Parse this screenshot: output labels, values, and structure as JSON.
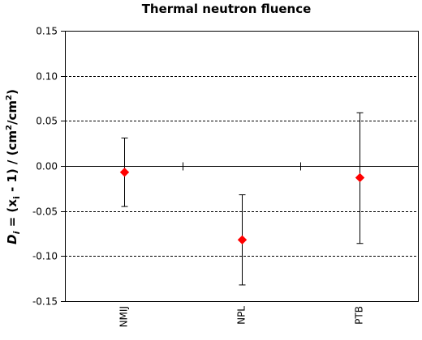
{
  "chart_data": {
    "type": "scatter",
    "title": "Thermal neutron fluence",
    "ylabel": {
      "d": "D",
      "d_sub": "i",
      "mid": " = (x",
      "x_sub": "i",
      "rest": " - 1)  / (cm",
      "sup1": "2",
      "slash": "/cm",
      "sup2": "2",
      "close": ")"
    },
    "categories": [
      "NMIJ",
      "NPL",
      "PTB"
    ],
    "series": [
      {
        "values": [
          -0.007,
          -0.082,
          -0.013
        ],
        "err_low": [
          -0.045,
          -0.132,
          -0.086
        ],
        "err_high": [
          0.031,
          -0.032,
          0.059
        ],
        "color": "#ff0000",
        "marker": "diamond"
      }
    ],
    "ylim": [
      -0.15,
      0.15
    ],
    "yticks": [
      0.15,
      0.1,
      0.05,
      0.0,
      -0.05,
      -0.1,
      -0.15
    ],
    "ytick_labels": [
      "0.15",
      "0.10",
      "0.05",
      "0.00",
      "-0.05",
      "-0.10",
      "-0.15"
    ],
    "grid": "horizontal-dashed",
    "legend": "none"
  }
}
